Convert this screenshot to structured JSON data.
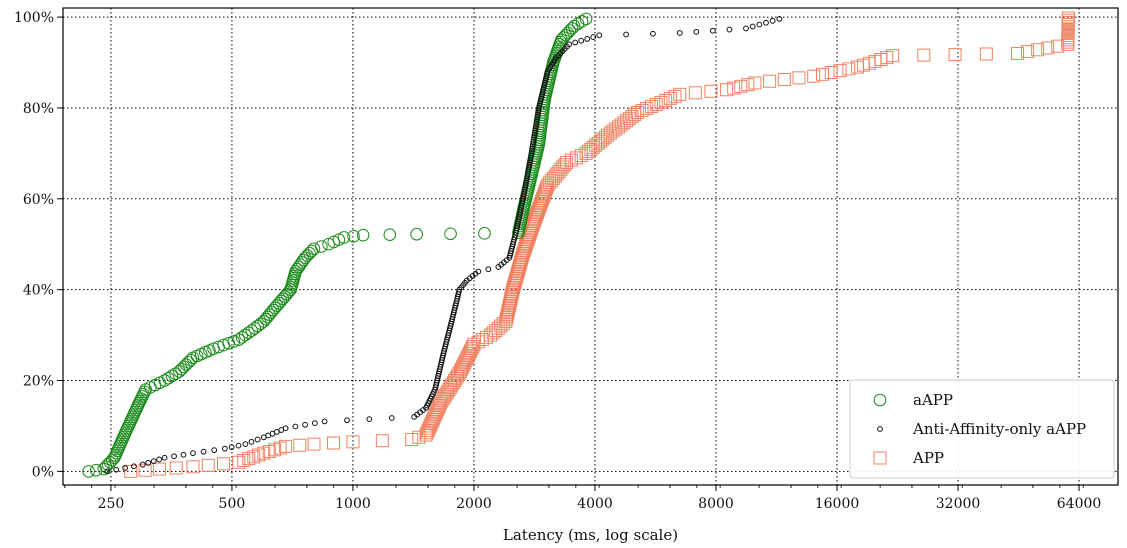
{
  "chart_data": {
    "type": "scatter",
    "xlabel": "Latency (ms, log scale)",
    "ylabel": "",
    "x_scale": "log2",
    "xlim": [
      190,
      80000
    ],
    "ylim": [
      -3,
      102
    ],
    "x_ticks": [
      250,
      500,
      1000,
      2000,
      4000,
      8000,
      16000,
      32000,
      64000
    ],
    "x_tick_labels": [
      "250",
      "500",
      "1000",
      "2000",
      "4000",
      "8000",
      "16000",
      "32000",
      "64000"
    ],
    "y_ticks": [
      0,
      20,
      40,
      60,
      80,
      100
    ],
    "y_tick_labels": [
      "0%",
      "20%",
      "40%",
      "60%",
      "80%",
      "100%"
    ],
    "grid": true,
    "legend_position": "bottom-right",
    "series": [
      {
        "name": "aAPP",
        "marker": "circle-large",
        "color": "#1a8a1a",
        "knots": [
          [
            220,
            0
          ],
          [
            240,
            0.5
          ],
          [
            255,
            3
          ],
          [
            270,
            8
          ],
          [
            290,
            14
          ],
          [
            305,
            18
          ],
          [
            340,
            20
          ],
          [
            370,
            22
          ],
          [
            400,
            25
          ],
          [
            450,
            27
          ],
          [
            520,
            29
          ],
          [
            560,
            31
          ],
          [
            600,
            33
          ],
          [
            640,
            36
          ],
          [
            700,
            40
          ],
          [
            720,
            44
          ],
          [
            760,
            47
          ],
          [
            800,
            49
          ],
          [
            870,
            50
          ],
          [
            950,
            51.5
          ],
          [
            1060,
            52
          ],
          [
            1440,
            52.2
          ],
          [
            2580,
            52.5
          ],
          [
            2660,
            58
          ],
          [
            2760,
            64
          ],
          [
            2900,
            72
          ],
          [
            3000,
            82
          ],
          [
            3150,
            90
          ],
          [
            3300,
            95
          ],
          [
            3550,
            98
          ],
          [
            3800,
            99.6
          ]
        ]
      },
      {
        "name": "Anti-Affinity-only aAPP",
        "marker": "circle-small",
        "color": "#111111",
        "knots": [
          [
            245,
            0
          ],
          [
            300,
            1.5
          ],
          [
            340,
            3
          ],
          [
            400,
            4
          ],
          [
            480,
            5
          ],
          [
            540,
            6
          ],
          [
            600,
            7.5
          ],
          [
            680,
            9.5
          ],
          [
            850,
            11
          ],
          [
            1420,
            12
          ],
          [
            1520,
            14
          ],
          [
            1600,
            18
          ],
          [
            1680,
            26
          ],
          [
            1760,
            33
          ],
          [
            1840,
            40
          ],
          [
            1920,
            42
          ],
          [
            2050,
            44
          ],
          [
            2300,
            45
          ],
          [
            2450,
            47
          ],
          [
            2550,
            53
          ],
          [
            2650,
            60
          ],
          [
            2780,
            70
          ],
          [
            2900,
            80
          ],
          [
            3050,
            88
          ],
          [
            3200,
            91
          ],
          [
            3450,
            94
          ],
          [
            4100,
            96
          ],
          [
            6500,
            96.5
          ],
          [
            9500,
            97.5
          ],
          [
            11500,
            99.6
          ]
        ]
      },
      {
        "name": "APP",
        "marker": "square",
        "color": "#f08060",
        "knots": [
          [
            280,
            0
          ],
          [
            330,
            0.5
          ],
          [
            400,
            1
          ],
          [
            520,
            2
          ],
          [
            600,
            4
          ],
          [
            680,
            5.5
          ],
          [
            800,
            6
          ],
          [
            1000,
            6.5
          ],
          [
            1400,
            7
          ],
          [
            1520,
            8
          ],
          [
            1650,
            15
          ],
          [
            1850,
            22
          ],
          [
            2000,
            28
          ],
          [
            2200,
            30
          ],
          [
            2400,
            33
          ],
          [
            2500,
            40
          ],
          [
            2650,
            48
          ],
          [
            2850,
            56
          ],
          [
            3050,
            63
          ],
          [
            3400,
            68
          ],
          [
            3800,
            70
          ],
          [
            4300,
            74
          ],
          [
            5100,
            79
          ],
          [
            6500,
            83
          ],
          [
            8500,
            84
          ],
          [
            10000,
            85.5
          ],
          [
            14000,
            87
          ],
          [
            18000,
            89
          ],
          [
            22000,
            91.5
          ],
          [
            45000,
            92
          ],
          [
            60000,
            94
          ],
          [
            60200,
            99.8
          ]
        ]
      }
    ]
  }
}
